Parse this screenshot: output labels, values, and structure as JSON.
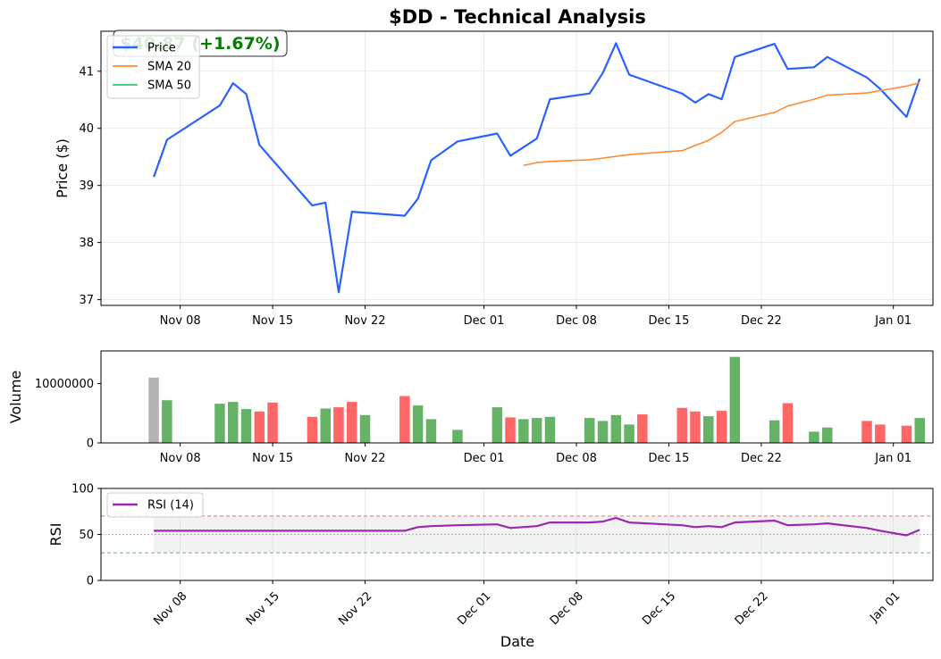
{
  "chart_data": {
    "type": "line",
    "title": "$DD - Technical Analysis",
    "price_badge": "$40.87 (+1.67%)",
    "price_badge_color": "#008000",
    "x_tick_labels": [
      "Nov 08",
      "Nov 15",
      "Nov 22",
      "Dec 01",
      "Dec 08",
      "Dec 15",
      "Dec 22",
      "Jan 01"
    ],
    "x_tick_dates": [
      "2024-11-08",
      "2024-11-15",
      "2024-11-22",
      "2024-12-01",
      "2024-12-08",
      "2024-12-15",
      "2024-12-22",
      "2025-01-01"
    ],
    "xlim": [
      "2024-11-02",
      "2025-01-04"
    ],
    "xlabel": "Date",
    "price_panel": {
      "ylabel": "Price ($)",
      "ylim": [
        36.9,
        41.7
      ],
      "yticks": [
        37,
        38,
        39,
        40,
        41
      ],
      "grid": true,
      "legend_position": "top-left",
      "series": [
        {
          "name": "Price",
          "color": "#2962ff",
          "x": [
            "2024-11-06",
            "2024-11-07",
            "2024-11-11",
            "2024-11-12",
            "2024-11-13",
            "2024-11-14",
            "2024-11-18",
            "2024-11-19",
            "2024-11-20",
            "2024-11-21",
            "2024-11-25",
            "2024-11-26",
            "2024-11-27",
            "2024-11-29",
            "2024-12-02",
            "2024-12-03",
            "2024-12-05",
            "2024-12-06",
            "2024-12-09",
            "2024-12-10",
            "2024-12-11",
            "2024-12-12",
            "2024-12-16",
            "2024-12-17",
            "2024-12-18",
            "2024-12-19",
            "2024-12-20",
            "2024-12-23",
            "2024-12-24",
            "2024-12-26",
            "2024-12-27",
            "2024-12-30",
            "2024-12-31",
            "2025-01-02",
            "2025-01-03"
          ],
          "values": [
            39.15,
            39.8,
            40.4,
            40.79,
            40.6,
            39.71,
            38.65,
            38.7,
            37.13,
            38.54,
            38.47,
            38.77,
            39.44,
            39.77,
            39.91,
            39.52,
            39.82,
            40.51,
            40.61,
            40.97,
            41.49,
            40.94,
            40.61,
            40.45,
            40.6,
            40.51,
            41.25,
            41.48,
            41.04,
            41.07,
            41.25,
            40.89,
            40.69,
            40.2,
            40.87
          ]
        },
        {
          "name": "SMA 20",
          "color": "#ff8c32",
          "x": [
            "2024-12-04",
            "2024-12-05",
            "2024-12-06",
            "2024-12-09",
            "2024-12-10",
            "2024-12-11",
            "2024-12-12",
            "2024-12-13",
            "2024-12-16",
            "2024-12-17",
            "2024-12-18",
            "2024-12-19",
            "2024-12-20",
            "2024-12-23",
            "2024-12-24",
            "2024-12-26",
            "2024-12-27",
            "2024-12-30",
            "2024-12-31",
            "2025-01-02",
            "2025-01-03"
          ],
          "values": [
            39.35,
            39.4,
            39.42,
            39.45,
            39.48,
            39.51,
            39.54,
            39.56,
            39.61,
            39.7,
            39.79,
            39.93,
            40.12,
            40.28,
            40.39,
            40.51,
            40.58,
            40.62,
            40.66,
            40.74,
            40.8
          ]
        },
        {
          "name": "SMA 50",
          "color": "#2ecc71",
          "x": [],
          "values": []
        }
      ]
    },
    "volume_panel": {
      "ylabel": "Volume",
      "ylim": [
        0,
        15500000
      ],
      "yticks": [
        0,
        10000000
      ],
      "ytick_labels": [
        "0",
        "10000000"
      ],
      "up_color": "#66b266",
      "down_color": "#ff6666",
      "neutral_color": "#b3b3b3",
      "x": [
        "2024-11-06",
        "2024-11-07",
        "2024-11-11",
        "2024-11-12",
        "2024-11-13",
        "2024-11-14",
        "2024-11-15",
        "2024-11-18",
        "2024-11-19",
        "2024-11-20",
        "2024-11-21",
        "2024-11-22",
        "2024-11-25",
        "2024-11-26",
        "2024-11-27",
        "2024-11-29",
        "2024-12-02",
        "2024-12-03",
        "2024-12-04",
        "2024-12-05",
        "2024-12-06",
        "2024-12-09",
        "2024-12-10",
        "2024-12-11",
        "2024-12-12",
        "2024-12-13",
        "2024-12-16",
        "2024-12-17",
        "2024-12-18",
        "2024-12-19",
        "2024-12-20",
        "2024-12-23",
        "2024-12-24",
        "2024-12-26",
        "2024-12-27",
        "2024-12-30",
        "2024-12-31",
        "2025-01-02",
        "2025-01-03"
      ],
      "values": [
        11000000,
        7200000,
        6600000,
        6900000,
        5700000,
        5300000,
        6800000,
        4400000,
        5800000,
        6000000,
        6900000,
        4700000,
        7900000,
        6300000,
        4000000,
        2200000,
        6000000,
        4300000,
        4000000,
        4200000,
        4400000,
        4200000,
        3700000,
        4700000,
        3100000,
        4800000,
        5900000,
        5300000,
        4500000,
        5400000,
        14500000,
        3800000,
        6700000,
        1900000,
        2600000,
        3700000,
        3100000,
        2900000,
        4200000
      ],
      "direction": [
        "neutral",
        "up",
        "up",
        "up",
        "up",
        "down",
        "down",
        "down",
        "up",
        "down",
        "down",
        "up",
        "down",
        "up",
        "up",
        "up",
        "up",
        "down",
        "up",
        "up",
        "up",
        "up",
        "up",
        "up",
        "up",
        "down",
        "down",
        "down",
        "up",
        "down",
        "up",
        "up",
        "down",
        "up",
        "up",
        "down",
        "down",
        "down",
        "up"
      ]
    },
    "rsi_panel": {
      "ylabel": "RSI",
      "ylim": [
        0,
        100
      ],
      "yticks": [
        0,
        50,
        100
      ],
      "overbought": 70,
      "oversold": 30,
      "legend_position": "top-left",
      "series": [
        {
          "name": "RSI (14)",
          "color": "#9c27b0",
          "x": [
            "2024-11-06",
            "2024-11-25",
            "2024-11-26",
            "2024-11-27",
            "2024-11-29",
            "2024-12-02",
            "2024-12-03",
            "2024-12-05",
            "2024-12-06",
            "2024-12-09",
            "2024-12-10",
            "2024-12-11",
            "2024-12-12",
            "2024-12-16",
            "2024-12-17",
            "2024-12-18",
            "2024-12-19",
            "2024-12-20",
            "2024-12-23",
            "2024-12-24",
            "2024-12-26",
            "2024-12-27",
            "2024-12-30",
            "2024-12-31",
            "2025-01-02",
            "2025-01-03"
          ],
          "values": [
            54,
            54,
            58,
            59,
            60,
            61,
            57,
            59,
            63,
            63,
            64,
            68,
            63,
            60,
            58,
            59,
            58,
            63,
            65,
            60,
            61,
            62,
            57,
            54,
            49,
            55
          ]
        }
      ]
    }
  }
}
